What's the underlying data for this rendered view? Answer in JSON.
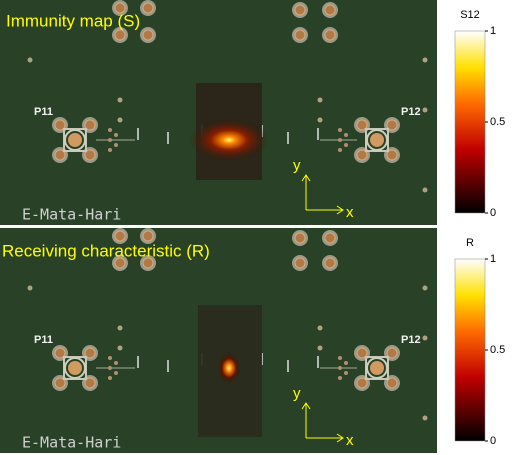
{
  "panels": [
    {
      "title": "Immunity map (S)",
      "colorbar_label": "S12",
      "colorbar_ticks": [
        0,
        0.5,
        1
      ],
      "board_labels": {
        "left_port": "P11",
        "right_port": "P12",
        "brand": "E-Mata-Hari"
      },
      "axes": {
        "y": "y",
        "x": "x"
      }
    },
    {
      "title": "Receiving characteristic (R)",
      "colorbar_label": "R",
      "colorbar_ticks": [
        0,
        0.5,
        1
      ],
      "board_labels": {
        "left_port": "P11",
        "right_port": "P12",
        "brand": "E-Mata-Hari"
      },
      "axes": {
        "y": "y",
        "x": "x"
      }
    }
  ]
}
